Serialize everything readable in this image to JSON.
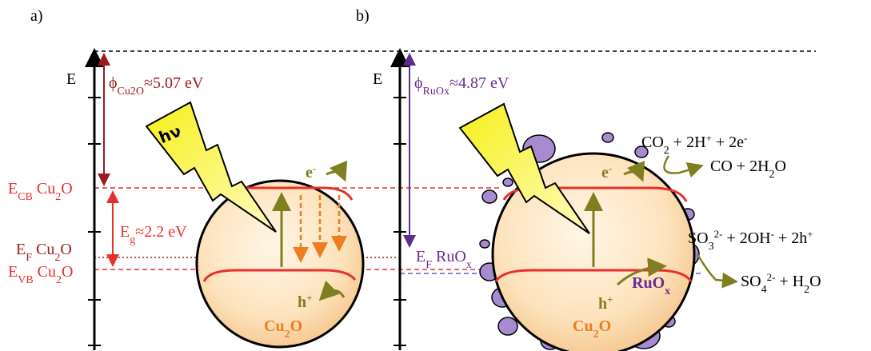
{
  "panel_a": {
    "label": "a)",
    "axis_label": "E",
    "work_function": [
      "ϕ",
      "Cu2O",
      "≈5.07 eV"
    ],
    "ecb": [
      "E",
      "CB",
      " Cu",
      "2",
      "O"
    ],
    "band_gap": [
      "E",
      "g",
      "≈2.2 eV"
    ],
    "ef": [
      "E",
      "F",
      " Cu",
      "2",
      "O"
    ],
    "evb": [
      "E",
      "VB",
      " Cu",
      "2",
      "O"
    ],
    "photon": "hν",
    "electron": [
      "e",
      "-"
    ],
    "hole": [
      "h",
      "+"
    ],
    "particle": [
      "Cu",
      "2",
      "O"
    ]
  },
  "panel_b": {
    "label": "b)",
    "axis_label": "E",
    "work_function": [
      "ϕ",
      "RuOx",
      "≈4.87 eV"
    ],
    "ef": [
      "E",
      "F",
      " RuO",
      "x"
    ],
    "electron": [
      "e",
      "-"
    ],
    "hole": [
      "h",
      "+"
    ],
    "particle": [
      "Cu",
      "2",
      "O"
    ],
    "cocatalyst": [
      "RuO",
      "x"
    ],
    "reduction_reactants": [
      "CO",
      "2",
      " + 2H",
      "+",
      " + 2e",
      "-"
    ],
    "reduction_products": [
      "CO + 2H",
      "2",
      "O"
    ],
    "oxidation_reactants": [
      "SO",
      "3",
      "2-",
      " + 2OH",
      "-",
      " + 2h",
      "+"
    ],
    "oxidation_products": [
      "SO",
      "4",
      "2-",
      " + H",
      "2",
      "O"
    ]
  }
}
